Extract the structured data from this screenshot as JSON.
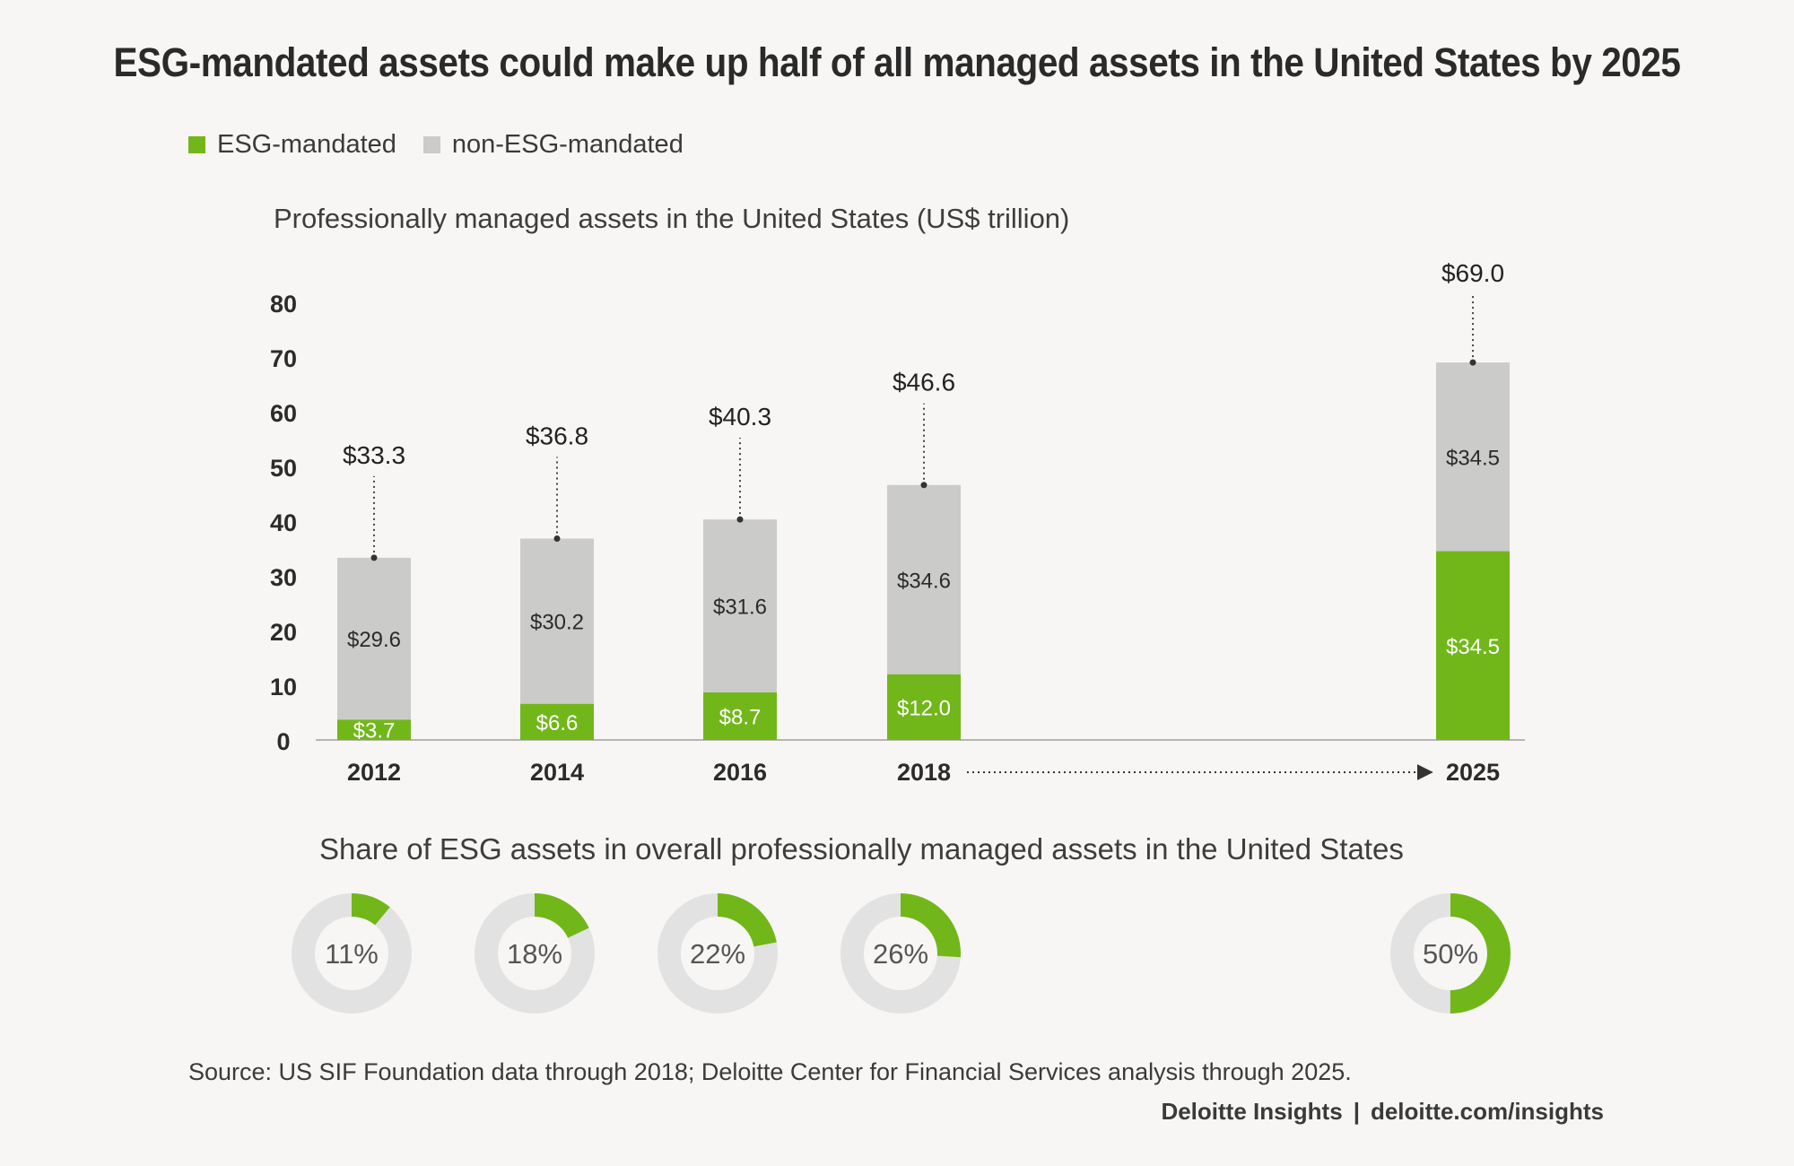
{
  "title": "ESG-mandated assets could make up half of all managed assets in the United States by 2025",
  "legend": {
    "items": [
      {
        "label": "ESG-mandated",
        "color": "#72b719"
      },
      {
        "label": "non-ESG-mandated",
        "color": "#cbcbc9"
      }
    ]
  },
  "chart_data": [
    {
      "type": "bar",
      "stacked": true,
      "title": "Professionally managed assets in the United States (US$ trillion)",
      "categories": [
        "2012",
        "2014",
        "2016",
        "2018",
        "2025"
      ],
      "series": [
        {
          "name": "ESG-mandated",
          "values": [
            3.7,
            6.6,
            8.7,
            12.0,
            34.5
          ],
          "labels": [
            "$3.7",
            "$6.6",
            "$8.7",
            "$12.0",
            "$34.5"
          ],
          "color": "#72b719"
        },
        {
          "name": "non-ESG-mandated",
          "values": [
            29.6,
            30.2,
            31.6,
            34.6,
            34.5
          ],
          "labels": [
            "$29.6",
            "$30.2",
            "$31.6",
            "$34.6",
            "$34.5"
          ],
          "color": "#cbcbc9"
        }
      ],
      "totals": [
        33.3,
        36.8,
        40.3,
        46.6,
        69.0
      ],
      "total_labels": [
        "$33.3",
        "$36.8",
        "$40.3",
        "$46.6",
        "$69.0"
      ],
      "yticks": [
        "0",
        "10",
        "20",
        "30",
        "40",
        "50",
        "60",
        "70",
        "80"
      ],
      "ylim": [
        0,
        80
      ],
      "grid": false,
      "legend": "top-left"
    },
    {
      "type": "pie",
      "variant": "donut",
      "title": "Share of ESG assets in overall professionally managed assets in the United States",
      "categories": [
        "2012",
        "2014",
        "2016",
        "2018",
        "2025"
      ],
      "values": [
        11,
        18,
        22,
        26,
        50
      ],
      "labels": [
        "11%",
        "18%",
        "22%",
        "26%",
        "50%"
      ],
      "color": "#72b719",
      "track_color": "#e2e2e2"
    }
  ],
  "source": "Source: US SIF Foundation data through 2018; Deloitte Center for Financial Services analysis through 2025.",
  "footer": {
    "brand": "Deloitte Insights",
    "separator": "|",
    "url": "deloitte.com/insights"
  }
}
